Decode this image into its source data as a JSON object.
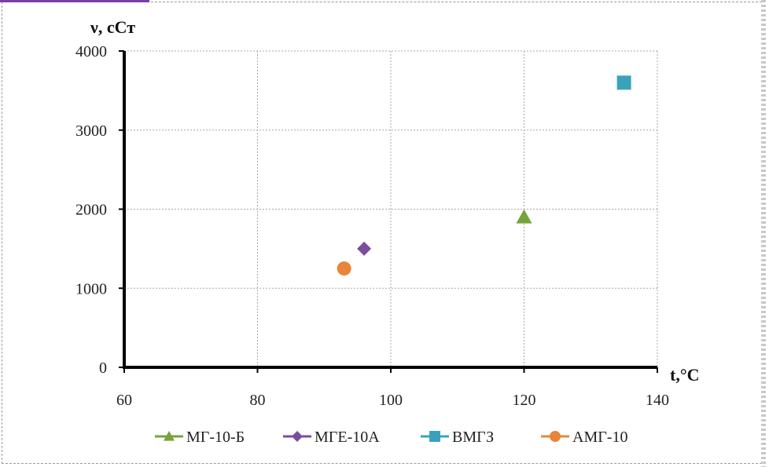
{
  "chart_data": {
    "type": "scatter",
    "title": "",
    "xlabel": "t,°C",
    "ylabel": "ν, сСт",
    "xlim": [
      60,
      140
    ],
    "ylim": [
      0,
      4000
    ],
    "xticks": [
      60,
      80,
      100,
      120,
      140
    ],
    "yticks": [
      0,
      1000,
      2000,
      3000,
      4000
    ],
    "grid": true,
    "legend_position": "bottom",
    "series": [
      {
        "name": "МГ-10-Б",
        "marker": "triangle",
        "color": "#77a33c",
        "points": [
          {
            "x": 120,
            "y": 1900
          }
        ]
      },
      {
        "name": "МГЕ-10А",
        "marker": "diamond",
        "color": "#7a4e9b",
        "points": [
          {
            "x": 96,
            "y": 1500
          }
        ]
      },
      {
        "name": "ВМГЗ",
        "marker": "square",
        "color": "#3aa3bb",
        "points": [
          {
            "x": 135,
            "y": 3600
          }
        ]
      },
      {
        "name": "АМГ-10",
        "marker": "circle",
        "color": "#e8853a",
        "points": [
          {
            "x": 93,
            "y": 1250
          }
        ]
      }
    ]
  }
}
